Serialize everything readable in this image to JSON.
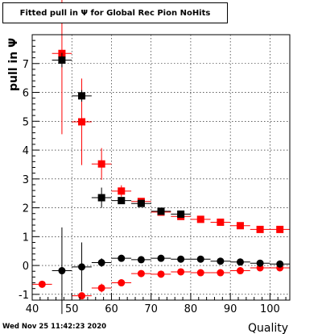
{
  "title": "Fitted pull in  Ψ  for Global Rec Pion NoHits",
  "timestamp": "Wed Nov 25 11:42:23 2020",
  "chart_data": {
    "type": "scatter",
    "xlabel": "Quality",
    "ylabel": "pull in  Ψ",
    "xlim": [
      40,
      105
    ],
    "ylim": [
      -1.2,
      8.0
    ],
    "xticks": [
      40,
      50,
      60,
      70,
      80,
      90,
      100
    ],
    "yticks": [
      -1,
      0,
      1,
      2,
      3,
      4,
      5,
      6,
      7
    ],
    "grid": true,
    "series": [
      {
        "marker": "square",
        "color": "#000000",
        "points": [
          {
            "x": 47.5,
            "y": 7.12,
            "yerr": 0.25
          },
          {
            "x": 52.5,
            "y": 5.88,
            "yerr": 0.2
          },
          {
            "x": 57.5,
            "y": 2.35,
            "yerr": 0.35
          },
          {
            "x": 62.5,
            "y": 2.25,
            "yerr": 0.05
          },
          {
            "x": 67.5,
            "y": 2.15,
            "yerr": 0.05
          },
          {
            "x": 72.5,
            "y": 1.88,
            "yerr": 0.05
          },
          {
            "x": 77.5,
            "y": 1.78,
            "yerr": 0.05
          }
        ]
      },
      {
        "marker": "square",
        "color": "#ff0000",
        "points": [
          {
            "x": 47.5,
            "y": 7.35,
            "yerr": 2.8
          },
          {
            "x": 52.5,
            "y": 4.98,
            "yerr": 1.5
          },
          {
            "x": 57.5,
            "y": 3.52,
            "yerr": 0.55
          },
          {
            "x": 62.5,
            "y": 2.58,
            "yerr": 0.2
          },
          {
            "x": 67.5,
            "y": 2.22,
            "yerr": 0.1
          },
          {
            "x": 72.5,
            "y": 1.85,
            "yerr": 0.05
          },
          {
            "x": 77.5,
            "y": 1.7,
            "yerr": 0.05
          },
          {
            "x": 82.5,
            "y": 1.6,
            "yerr": 0.05
          },
          {
            "x": 87.5,
            "y": 1.5,
            "yerr": 0.05
          },
          {
            "x": 92.5,
            "y": 1.38,
            "yerr": 0.05
          },
          {
            "x": 97.5,
            "y": 1.25,
            "yerr": 0.05
          },
          {
            "x": 102.5,
            "y": 1.25,
            "yerr": 0.05
          }
        ]
      },
      {
        "marker": "circle",
        "color": "#000000",
        "points": [
          {
            "x": 47.5,
            "y": -0.18,
            "yerr": 1.5
          },
          {
            "x": 52.5,
            "y": -0.05,
            "yerr": 0.85
          },
          {
            "x": 57.5,
            "y": 0.1,
            "yerr": 0.15
          },
          {
            "x": 62.5,
            "y": 0.25,
            "yerr": 0.08
          },
          {
            "x": 67.5,
            "y": 0.2,
            "yerr": 0.05
          },
          {
            "x": 72.5,
            "y": 0.25,
            "yerr": 0.05
          },
          {
            "x": 77.5,
            "y": 0.22,
            "yerr": 0.05
          },
          {
            "x": 82.5,
            "y": 0.22,
            "yerr": 0.05
          },
          {
            "x": 87.5,
            "y": 0.15,
            "yerr": 0.05
          },
          {
            "x": 92.5,
            "y": 0.12,
            "yerr": 0.05
          },
          {
            "x": 97.5,
            "y": 0.08,
            "yerr": 0.05
          },
          {
            "x": 102.5,
            "y": 0.05,
            "yerr": 0.05
          }
        ]
      },
      {
        "marker": "circle",
        "color": "#ff0000",
        "points": [
          {
            "x": 42.5,
            "y": -0.65,
            "yerr": 0.0
          },
          {
            "x": 52.5,
            "y": -1.05,
            "yerr": 0.1
          },
          {
            "x": 57.5,
            "y": -0.78,
            "yerr": 0.15
          },
          {
            "x": 62.5,
            "y": -0.6,
            "yerr": 0.1
          },
          {
            "x": 67.5,
            "y": -0.28,
            "yerr": 0.05
          },
          {
            "x": 72.5,
            "y": -0.3,
            "yerr": 0.05
          },
          {
            "x": 77.5,
            "y": -0.22,
            "yerr": 0.05
          },
          {
            "x": 82.5,
            "y": -0.25,
            "yerr": 0.05
          },
          {
            "x": 87.5,
            "y": -0.25,
            "yerr": 0.05
          },
          {
            "x": 92.5,
            "y": -0.18,
            "yerr": 0.05
          },
          {
            "x": 97.5,
            "y": -0.08,
            "yerr": 0.05
          },
          {
            "x": 102.5,
            "y": -0.08,
            "yerr": 0.05
          }
        ]
      }
    ]
  }
}
